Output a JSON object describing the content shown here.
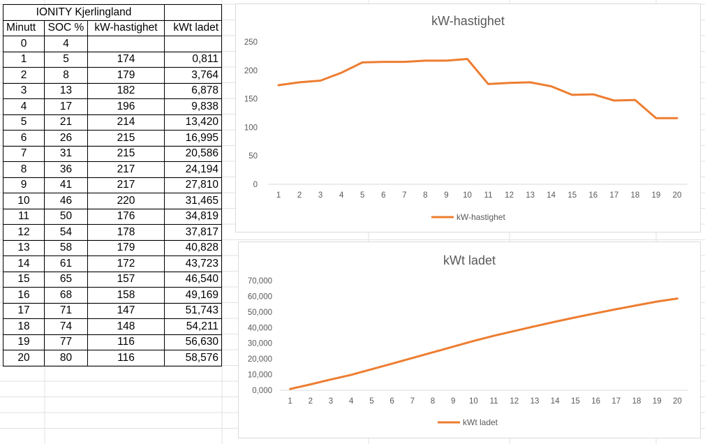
{
  "table": {
    "title": "IONITY Kjerlingland",
    "headers": [
      "Minutt",
      "SOC %",
      "kW-hastighet",
      "kWt ladet"
    ],
    "rows": [
      [
        "0",
        "4",
        "",
        ""
      ],
      [
        "1",
        "5",
        "174",
        "0,811"
      ],
      [
        "2",
        "8",
        "179",
        "3,764"
      ],
      [
        "3",
        "13",
        "182",
        "6,878"
      ],
      [
        "4",
        "17",
        "196",
        "9,838"
      ],
      [
        "5",
        "21",
        "214",
        "13,420"
      ],
      [
        "6",
        "26",
        "215",
        "16,995"
      ],
      [
        "7",
        "31",
        "215",
        "20,586"
      ],
      [
        "8",
        "36",
        "217",
        "24,194"
      ],
      [
        "9",
        "41",
        "217",
        "27,810"
      ],
      [
        "10",
        "46",
        "220",
        "31,465"
      ],
      [
        "11",
        "50",
        "176",
        "34,819"
      ],
      [
        "12",
        "54",
        "178",
        "37,817"
      ],
      [
        "13",
        "58",
        "179",
        "40,828"
      ],
      [
        "14",
        "61",
        "172",
        "43,723"
      ],
      [
        "15",
        "65",
        "157",
        "46,540"
      ],
      [
        "16",
        "68",
        "158",
        "49,169"
      ],
      [
        "17",
        "71",
        "147",
        "51,743"
      ],
      [
        "18",
        "74",
        "148",
        "54,211"
      ],
      [
        "19",
        "77",
        "116",
        "56,630"
      ],
      [
        "20",
        "80",
        "116",
        "58,576"
      ]
    ]
  },
  "chart_data": [
    {
      "type": "line",
      "title": "kW-hastighet",
      "xlabel": "",
      "ylabel": "",
      "categories": [
        "1",
        "2",
        "3",
        "4",
        "5",
        "6",
        "7",
        "8",
        "9",
        "10",
        "11",
        "12",
        "13",
        "14",
        "15",
        "16",
        "17",
        "18",
        "19",
        "20"
      ],
      "series": [
        {
          "name": "kW-hastighet",
          "values": [
            174,
            179,
            182,
            196,
            214,
            215,
            215,
            217,
            217,
            220,
            176,
            178,
            179,
            172,
            157,
            158,
            147,
            148,
            116,
            116
          ],
          "color": "#ED7D31"
        }
      ],
      "ylim": [
        0,
        250
      ],
      "yticks": [
        0,
        50,
        100,
        150,
        200,
        250
      ],
      "ytick_labels": [
        "0",
        "50",
        "100",
        "150",
        "200",
        "250"
      ],
      "grid": false,
      "legend": "bottom"
    },
    {
      "type": "line",
      "title": "kWt ladet",
      "xlabel": "",
      "ylabel": "",
      "categories": [
        "1",
        "2",
        "3",
        "4",
        "5",
        "6",
        "7",
        "8",
        "9",
        "10",
        "11",
        "12",
        "13",
        "14",
        "15",
        "16",
        "17",
        "18",
        "19",
        "20"
      ],
      "series": [
        {
          "name": "kWt ladet",
          "values": [
            0.811,
            3.764,
            6.878,
            9.838,
            13.42,
            16.995,
            20.586,
            24.194,
            27.81,
            31.465,
            34.819,
            37.817,
            40.828,
            43.723,
            46.54,
            49.169,
            51.743,
            54.211,
            56.63,
            58.576
          ],
          "color": "#ED7D31"
        }
      ],
      "ylim": [
        0,
        70
      ],
      "yticks": [
        0,
        10,
        20,
        30,
        40,
        50,
        60,
        70
      ],
      "ytick_labels": [
        "0,000",
        "10,000",
        "20,000",
        "30,000",
        "40,000",
        "50,000",
        "60,000",
        "70,000"
      ],
      "grid": false,
      "legend": "bottom"
    }
  ],
  "colors": {
    "series": "#ED7D31",
    "axis_text": "#595959",
    "axis_line": "#d9d9d9",
    "sheet_grid": "#e1e1e1"
  }
}
